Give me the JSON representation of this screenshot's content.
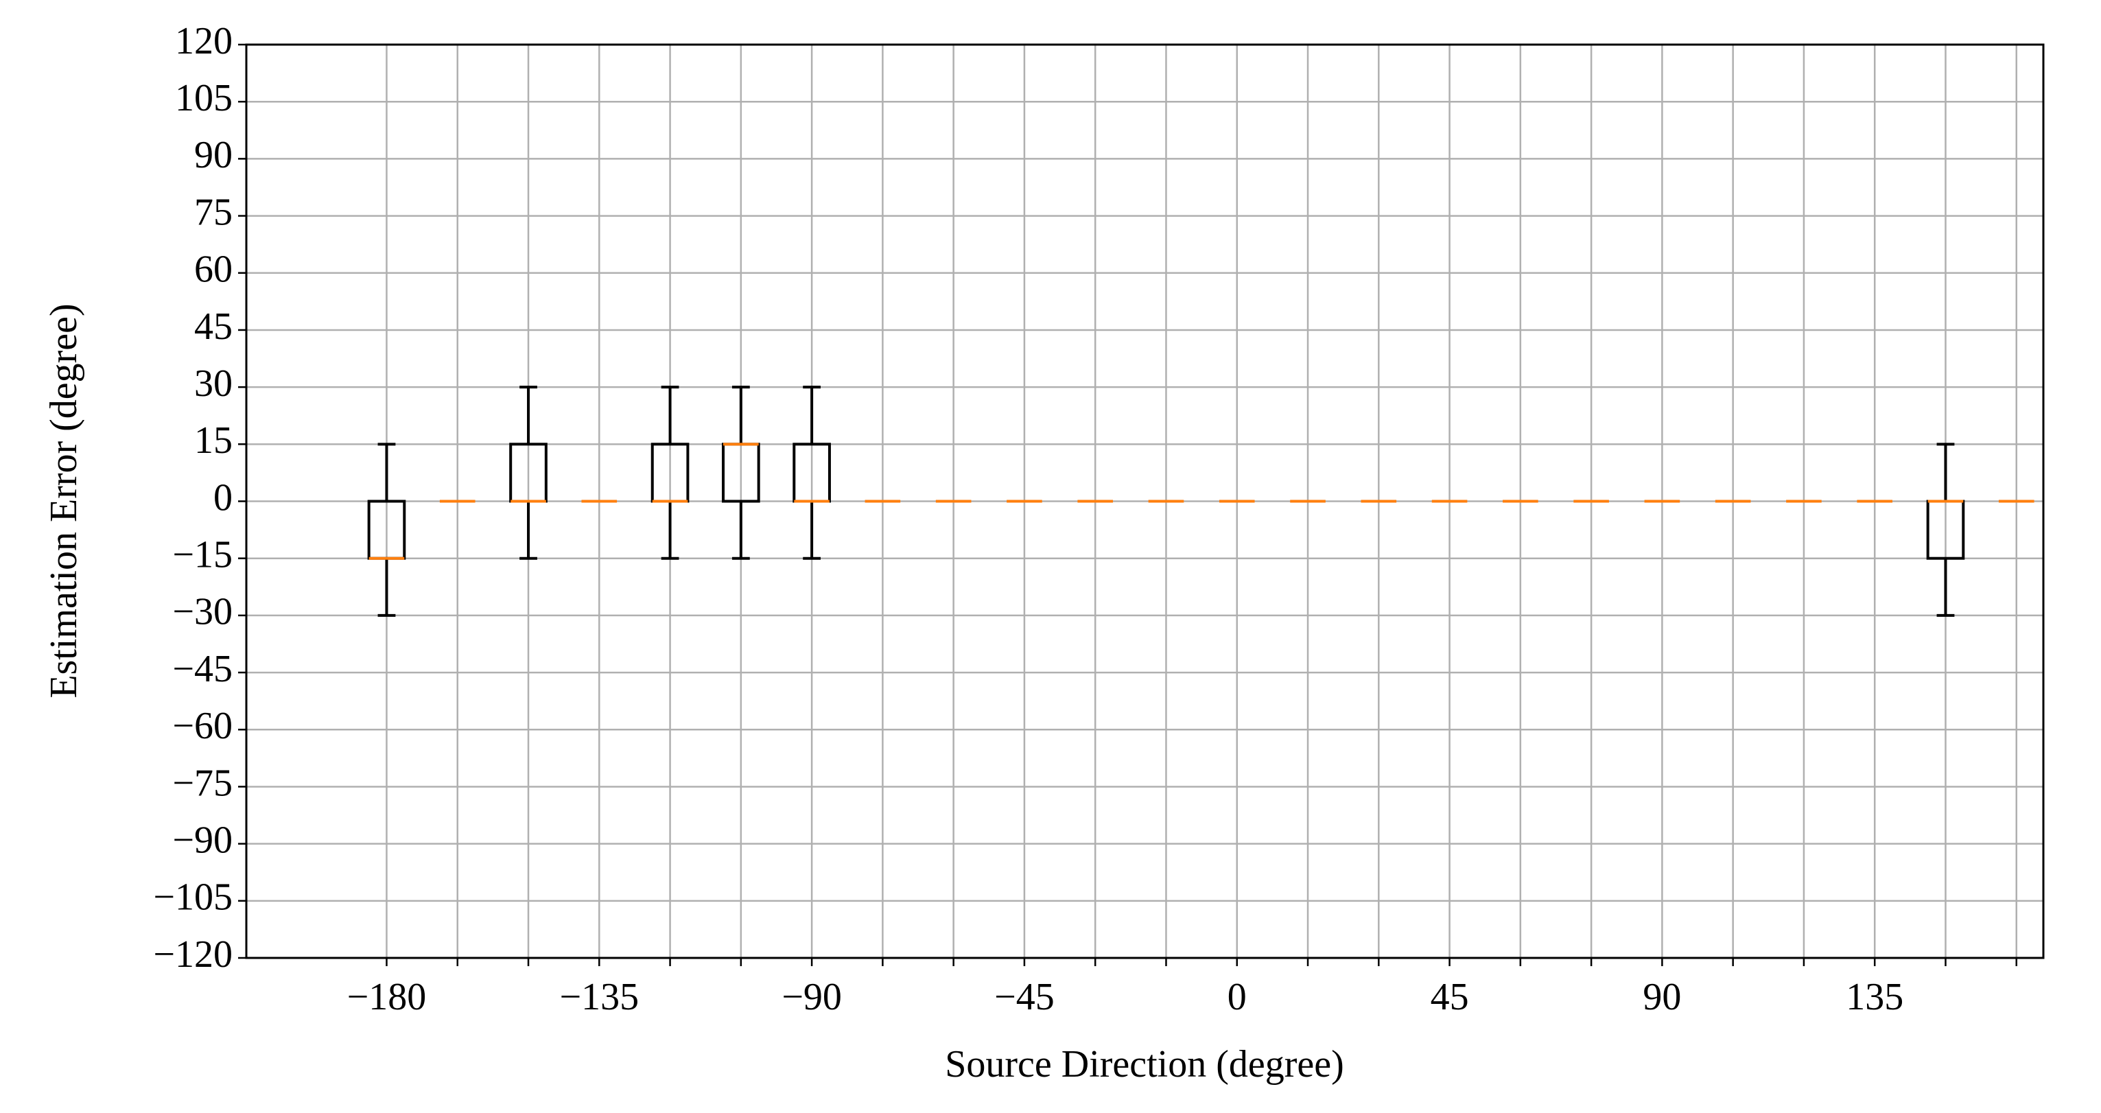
{
  "chart_data": {
    "type": "box",
    "xlabel": "Source Direction (degree)",
    "ylabel": "Estimation Error (degree)",
    "categories": [
      "−180",
      null,
      null,
      "−135",
      null,
      null,
      "−90",
      null,
      null,
      "−45",
      null,
      null,
      "0",
      null,
      null,
      "45",
      null,
      null,
      "90",
      null,
      null,
      "135",
      null,
      null
    ],
    "boxes": [
      {
        "whislo": -30,
        "q1": -15,
        "med": -15,
        "q3": 0,
        "whishi": 15
      },
      {
        "whislo": 0,
        "q1": 0,
        "med": 0,
        "q3": 0,
        "whishi": 0
      },
      {
        "whislo": -15,
        "q1": 0,
        "med": 0,
        "q3": 15,
        "whishi": 30
      },
      {
        "whislo": 0,
        "q1": 0,
        "med": 0,
        "q3": 0,
        "whishi": 0
      },
      {
        "whislo": -15,
        "q1": 0,
        "med": 0,
        "q3": 15,
        "whishi": 30
      },
      {
        "whislo": -15,
        "q1": 0,
        "med": 15,
        "q3": 15,
        "whishi": 30
      },
      {
        "whislo": -15,
        "q1": 0,
        "med": 0,
        "q3": 15,
        "whishi": 30
      },
      {
        "whislo": 0,
        "q1": 0,
        "med": 0,
        "q3": 0,
        "whishi": 0
      },
      {
        "whislo": 0,
        "q1": 0,
        "med": 0,
        "q3": 0,
        "whishi": 0
      },
      {
        "whislo": 0,
        "q1": 0,
        "med": 0,
        "q3": 0,
        "whishi": 0
      },
      {
        "whislo": 0,
        "q1": 0,
        "med": 0,
        "q3": 0,
        "whishi": 0
      },
      {
        "whislo": 0,
        "q1": 0,
        "med": 0,
        "q3": 0,
        "whishi": 0
      },
      {
        "whislo": 0,
        "q1": 0,
        "med": 0,
        "q3": 0,
        "whishi": 0
      },
      {
        "whislo": 0,
        "q1": 0,
        "med": 0,
        "q3": 0,
        "whishi": 0
      },
      {
        "whislo": 0,
        "q1": 0,
        "med": 0,
        "q3": 0,
        "whishi": 0
      },
      {
        "whislo": 0,
        "q1": 0,
        "med": 0,
        "q3": 0,
        "whishi": 0
      },
      {
        "whislo": 0,
        "q1": 0,
        "med": 0,
        "q3": 0,
        "whishi": 0
      },
      {
        "whislo": 0,
        "q1": 0,
        "med": 0,
        "q3": 0,
        "whishi": 0
      },
      {
        "whislo": 0,
        "q1": 0,
        "med": 0,
        "q3": 0,
        "whishi": 0
      },
      {
        "whislo": 0,
        "q1": 0,
        "med": 0,
        "q3": 0,
        "whishi": 0
      },
      {
        "whislo": 0,
        "q1": 0,
        "med": 0,
        "q3": 0,
        "whishi": 0
      },
      {
        "whislo": 0,
        "q1": 0,
        "med": 0,
        "q3": 0,
        "whishi": 0
      },
      {
        "whislo": -30,
        "q1": -15,
        "med": 0,
        "q3": 0,
        "whishi": 15
      },
      {
        "whislo": 0,
        "q1": 0,
        "med": 0,
        "q3": 0,
        "whishi": 0
      }
    ],
    "box_color": "#000000",
    "median_color": "#ff7f0e",
    "ylim": [
      -120,
      120
    ],
    "yticks": [
      {
        "value": -120,
        "label": "−120"
      },
      {
        "value": -105,
        "label": "−105"
      },
      {
        "value": -90,
        "label": "−90"
      },
      {
        "value": -75,
        "label": "−75"
      },
      {
        "value": -60,
        "label": "−60"
      },
      {
        "value": -45,
        "label": "−45"
      },
      {
        "value": -30,
        "label": "−30"
      },
      {
        "value": -15,
        "label": "−15"
      },
      0,
      15,
      30,
      45,
      60,
      75,
      90,
      105,
      120
    ],
    "grid": true
  }
}
